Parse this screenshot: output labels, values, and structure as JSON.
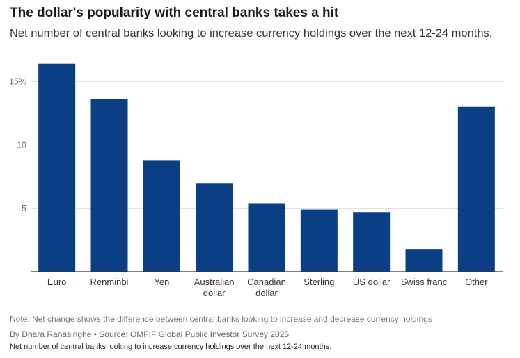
{
  "header": {
    "title": "The dollar's popularity with central banks takes a hit",
    "subtitle": "Net number of central banks looking to increase currency holdings over the next 12-24 months."
  },
  "chart_data": {
    "type": "bar",
    "categories": [
      [
        "Euro"
      ],
      [
        "Renminbi"
      ],
      [
        "Yen"
      ],
      [
        "Australian",
        "dollar"
      ],
      [
        "Canadian",
        "dollar"
      ],
      [
        "Sterling"
      ],
      [
        "US dollar"
      ],
      [
        "Swiss franc"
      ],
      [
        "Other"
      ]
    ],
    "values": [
      16.4,
      13.6,
      8.8,
      7.0,
      5.4,
      4.9,
      4.7,
      1.8,
      13.0
    ],
    "ylim": [
      0,
      17
    ],
    "yticks": [
      {
        "value": 5,
        "label": "5"
      },
      {
        "value": 10,
        "label": "10"
      },
      {
        "value": 15,
        "label": "15%"
      }
    ],
    "grid": true,
    "bar_color": "#0a3f85"
  },
  "footer": {
    "note": "Note: Net change shows the difference between central banks looking to increase and decrease currency holdings",
    "byline": "By Dhara Ranasinghe  • Source: OMFIF Global Public Investor Survey 2025",
    "repeat_subtitle": "Net number of central banks looking to increase currency holdings over the next 12-24 months."
  }
}
